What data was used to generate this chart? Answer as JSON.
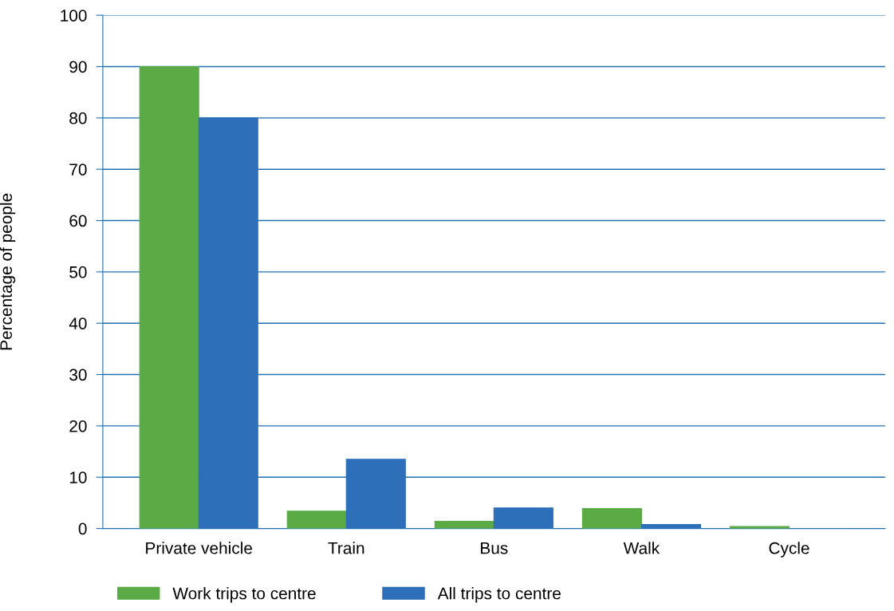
{
  "chart_data": {
    "type": "bar",
    "ylabel": "Percentage of people",
    "categories": [
      "Private vehicle",
      "Train",
      "Bus",
      "Walk",
      "Cycle"
    ],
    "series": [
      {
        "name": "Work trips to centre",
        "color": "#5aab46",
        "values": [
          90,
          3.4,
          1.4,
          3.9,
          0.4
        ]
      },
      {
        "name": "All trips to centre",
        "color": "#2e6fba",
        "values": [
          80,
          13.5,
          4,
          0.8,
          0
        ]
      }
    ],
    "ylim": [
      0,
      100
    ],
    "yticks": [
      0,
      10,
      20,
      30,
      40,
      50,
      60,
      70,
      80,
      90,
      100
    ],
    "grid": "y",
    "legend": "bottom"
  }
}
